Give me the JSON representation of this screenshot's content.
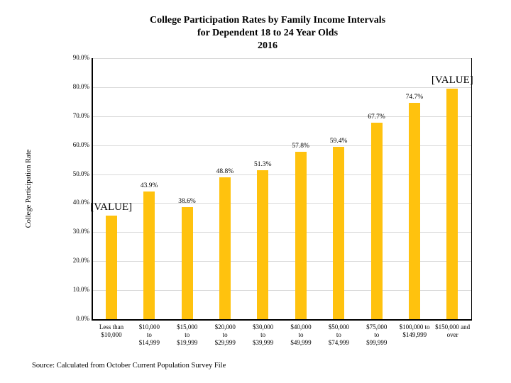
{
  "header": {
    "title_lines": [
      "College Participation Rates by Family Income Intervals",
      "for Dependent 18 to 24 Year Olds",
      "2016"
    ]
  },
  "y_axis": {
    "title": "College Participation Rate",
    "tick_labels": [
      "90.0%",
      "80.0%",
      "70.0%",
      "60.0%",
      "50.0%",
      "40.0%",
      "30.0%",
      "20.0%",
      "10.0%",
      "0.0%"
    ]
  },
  "footer": {
    "source": "Source: Calculated from October Current Population Survey File"
  },
  "colors": {
    "bar": "#FFC20E",
    "gridline": "#D9D9D9",
    "axis": "#000000",
    "text": "#000000"
  },
  "chart_data": {
    "type": "bar",
    "title": "College Participation Rates by Family Income Intervals for Dependent 18 to 24 Year Olds 2016",
    "xlabel": "",
    "ylabel": "College Participation Rate",
    "ylim": [
      0,
      90
    ],
    "ytick_step": 10,
    "grid": true,
    "legend_position": "none",
    "categories": [
      "Less than $10,000",
      "$10,000 to $14,999",
      "$15,000 to $19,999",
      "$20,000 to $29,999",
      "$30,000 to $39,999",
      "$40,000 to $49,999",
      "$50,000 to $74,999",
      "$75,000 to $99,999",
      "$100,000 to $149,999",
      "$150,000 and over"
    ],
    "category_label_lines": [
      [
        "Less than",
        "$10,000"
      ],
      [
        "$10,000",
        "to",
        "$14,999"
      ],
      [
        "$15,000",
        "to",
        "$19,999"
      ],
      [
        "$20,000",
        "to",
        "$29,999"
      ],
      [
        "$30,000",
        "to",
        "$39,999"
      ],
      [
        "$40,000",
        "to",
        "$49,999"
      ],
      [
        "$50,000",
        "to",
        "$74,999"
      ],
      [
        "$75,000",
        "to",
        "$99,999"
      ],
      [
        "$100,000 to",
        "$149,999"
      ],
      [
        "$150,000 and",
        "over"
      ]
    ],
    "values": [
      35.7,
      43.9,
      38.6,
      48.8,
      51.3,
      57.8,
      59.4,
      67.7,
      74.7,
      79.5
    ],
    "data_labels": [
      "[VALUE]",
      "43.9%",
      "38.6%",
      "48.8%",
      "51.3%",
      "57.8%",
      "59.4%",
      "67.7%",
      "74.7%",
      "[VALUE]"
    ]
  }
}
